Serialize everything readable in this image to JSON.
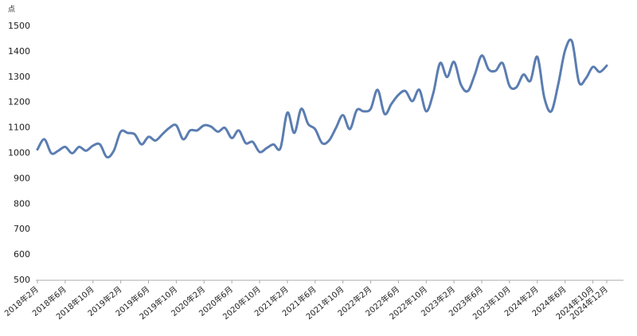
{
  "chart_data": {
    "type": "line",
    "y_label": "点",
    "categories": [
      "2018年2月",
      null,
      null,
      null,
      "2018年6月",
      null,
      null,
      null,
      "2018年10月",
      null,
      null,
      null,
      "2019年2月",
      null,
      null,
      null,
      "2019年6月",
      null,
      null,
      null,
      "2019年10月",
      null,
      null,
      null,
      "2020年2月",
      null,
      null,
      null,
      "2020年6月",
      null,
      null,
      null,
      "2020年10月",
      null,
      null,
      null,
      "2021年2月",
      null,
      null,
      null,
      "2021年6月",
      null,
      null,
      null,
      "2021年10月",
      null,
      null,
      null,
      "2022年2月",
      null,
      null,
      null,
      "2022年6月",
      null,
      null,
      null,
      "2022年10月",
      null,
      null,
      null,
      "2023年2月",
      null,
      null,
      null,
      "2023年6月",
      null,
      null,
      null,
      "2023年10月",
      null,
      null,
      null,
      "2024年2月",
      null,
      null,
      null,
      "2024年6月",
      null,
      null,
      null,
      "2024年10月",
      null,
      "2024年12月"
    ],
    "values": [
      1015,
      1055,
      1000,
      1010,
      1025,
      1000,
      1025,
      1010,
      1030,
      1035,
      985,
      1010,
      1085,
      1080,
      1075,
      1035,
      1065,
      1050,
      1075,
      1100,
      1110,
      1055,
      1090,
      1090,
      1110,
      1105,
      1085,
      1100,
      1060,
      1090,
      1040,
      1045,
      1005,
      1020,
      1035,
      1020,
      1160,
      1080,
      1175,
      1115,
      1095,
      1040,
      1050,
      1100,
      1150,
      1095,
      1170,
      1165,
      1175,
      1250,
      1155,
      1195,
      1230,
      1245,
      1205,
      1250,
      1165,
      1235,
      1355,
      1300,
      1360,
      1270,
      1245,
      1310,
      1385,
      1330,
      1325,
      1355,
      1265,
      1260,
      1310,
      1285,
      1380,
      1220,
      1165,
      1270,
      1405,
      1440,
      1280,
      1295,
      1340,
      1320,
      1345
    ],
    "color": "#5b7db1",
    "ylim": [
      500,
      1500
    ],
    "yticks": [
      500,
      600,
      700,
      800,
      900,
      1000,
      1100,
      1200,
      1300,
      1400,
      1500
    ]
  }
}
